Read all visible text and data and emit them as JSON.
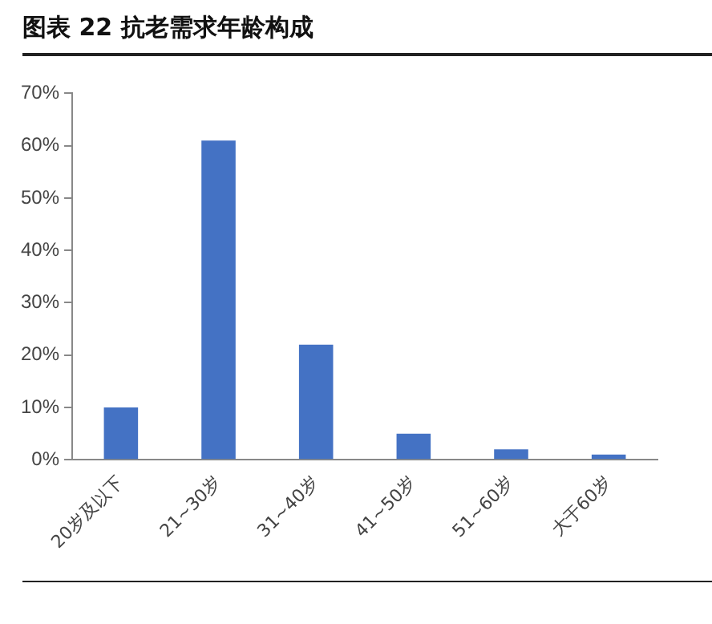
{
  "chart_data": {
    "type": "bar",
    "title": "图表 22 抗老需求年龄构成",
    "categories": [
      "20岁及以下",
      "21~30岁",
      "31~40岁",
      "41~50岁",
      "51~60岁",
      "大于60岁"
    ],
    "values": [
      10,
      61,
      22,
      5,
      2,
      1
    ],
    "color": "#4472c4",
    "ylim": [
      0,
      70
    ],
    "yticks": [
      {
        "value": 0,
        "label": "0%"
      },
      {
        "value": 10,
        "label": "10%"
      },
      {
        "value": 20,
        "label": "20%"
      },
      {
        "value": 30,
        "label": "30%"
      },
      {
        "value": 40,
        "label": "40%"
      },
      {
        "value": 50,
        "label": "50%"
      },
      {
        "value": 60,
        "label": "60%"
      },
      {
        "value": 70,
        "label": "70%"
      }
    ],
    "grid": false,
    "legend": false
  }
}
